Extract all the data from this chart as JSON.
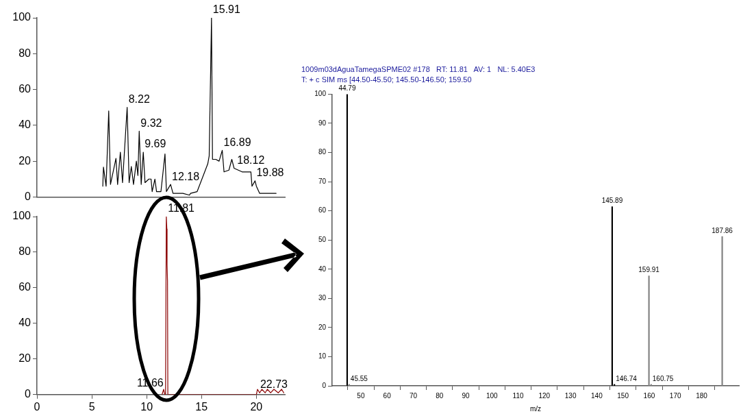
{
  "chart_data": [
    {
      "type": "line",
      "marker": "none",
      "xlim": [
        0,
        22.6
      ],
      "xticks": [
        0,
        5,
        10,
        15,
        20
      ],
      "ylim": [
        0,
        100
      ],
      "yticks": [
        0,
        20,
        40,
        60,
        80,
        100
      ],
      "tick_labels": "y",
      "series": [
        {
          "color": "#000000",
          "x": [
            6.0,
            6.06,
            6.3,
            6.54,
            6.7,
            7.2,
            7.35,
            7.6,
            7.8,
            8.22,
            8.4,
            8.6,
            8.8,
            9.06,
            9.2,
            9.32,
            9.5,
            9.69,
            9.85,
            10.2,
            10.4,
            10.5,
            10.75,
            10.9,
            11.3,
            11.67,
            11.8,
            12.18,
            12.4,
            12.7,
            13.3,
            13.9,
            14.0,
            14.6,
            15.57,
            15.7,
            15.91,
            16.0,
            16.3,
            16.6,
            16.89,
            17.05,
            17.5,
            17.76,
            17.97,
            18.7,
            19.5,
            19.6,
            19.88,
            20.0,
            20.3,
            21.8
          ],
          "values": [
            6,
            16.7,
            6,
            48,
            7,
            21.5,
            7,
            25,
            8,
            50,
            8,
            17,
            7,
            20,
            12,
            36.7,
            7,
            25,
            8,
            10,
            10,
            3,
            10,
            3,
            3,
            24,
            3,
            7,
            2,
            2,
            2,
            1,
            2,
            3,
            18.5,
            23,
            100,
            21,
            21,
            20,
            26,
            14,
            15,
            21,
            16,
            14,
            14,
            6,
            9,
            6,
            2,
            2
          ]
        }
      ],
      "annotations": [
        {
          "text": "8.22",
          "x": 8.22,
          "y": 50
        },
        {
          "text": "9.32",
          "x": 9.32,
          "y": 36.7
        },
        {
          "text": "9.69",
          "x": 9.69,
          "y": 25
        },
        {
          "text": "12.18",
          "x": 12.18,
          "y": 7
        },
        {
          "text": "15.91",
          "x": 15.91,
          "y": 100
        },
        {
          "text": "16.89",
          "x": 16.89,
          "y": 26
        },
        {
          "text": "18.12",
          "x": 18.12,
          "y": 16
        },
        {
          "text": "19.88",
          "x": 19.88,
          "y": 9
        }
      ]
    },
    {
      "type": "line",
      "marker": "none",
      "xlim": [
        0,
        22.6
      ],
      "xticks": [
        0,
        5,
        10,
        15,
        20
      ],
      "ylim": [
        0,
        100
      ],
      "yticks": [
        0,
        20,
        40,
        60,
        80,
        100
      ],
      "series": [
        {
          "color": "#8b0000",
          "x": [
            11.4,
            11.55,
            11.65,
            11.72,
            11.79,
            11.84,
            11.86,
            11.9,
            11.93,
            12.1,
            20.0,
            20.1,
            20.3,
            20.5,
            20.8,
            21.0,
            21.3,
            21.6,
            22.0,
            22.3,
            22.5
          ],
          "values": [
            0,
            3,
            0,
            0,
            100,
            93,
            73,
            64,
            0,
            0,
            0,
            3,
            1,
            3,
            1,
            3,
            1,
            3,
            1,
            3,
            1
          ]
        }
      ],
      "annotations": [
        {
          "text": "11.81",
          "x": 11.81,
          "y": 100
        },
        {
          "text": "11.66",
          "x": 11.66,
          "y": 2
        },
        "22.73"
      ]
    },
    {
      "type": "bar",
      "title": "1009m03dAguaTamegaSPME02 #178   RT: 11.81   AV: 1   NL: 5.40E3",
      "subtitle": "T: + c SIM ms [44.50-45.50; 145.50-146.50; 159.50",
      "xlabel": "m/z",
      "x": [
        44.79,
        45.55,
        145.89,
        146.74,
        159.91,
        160.75,
        187.86
      ],
      "values": [
        100,
        0.5,
        61.4,
        0.5,
        37.7,
        0.5,
        51.2
      ],
      "colors": [
        "#000000",
        "#808080",
        "#000000",
        "#000000",
        "#808080",
        "#808080",
        "#808080"
      ],
      "annotations": [
        {
          "text": "44.79",
          "x": 44.79,
          "y": 100
        },
        {
          "text": "45.55",
          "x": 45.55,
          "y": 0.5
        },
        {
          "text": "145.89",
          "x": 145.89,
          "y": 61.4
        },
        {
          "text": "146.74",
          "x": 146.74,
          "y": 0.5
        },
        {
          "text": "159.91",
          "x": 159.91,
          "y": 37.7
        },
        {
          "text": "160.75",
          "x": 160.75,
          "y": 0.5
        },
        {
          "text": "187.86",
          "x": 187.86,
          "y": 51.2
        }
      ],
      "xlim": [
        44.6,
        188.7
      ],
      "xticks": [
        50,
        60,
        70,
        80,
        90,
        100,
        110,
        120,
        130,
        140,
        150,
        160,
        170,
        180
      ],
      "ylim": [
        0,
        100
      ],
      "yticks": [
        0,
        10,
        20,
        30,
        40,
        50,
        60,
        70,
        80,
        90,
        100
      ]
    }
  ]
}
